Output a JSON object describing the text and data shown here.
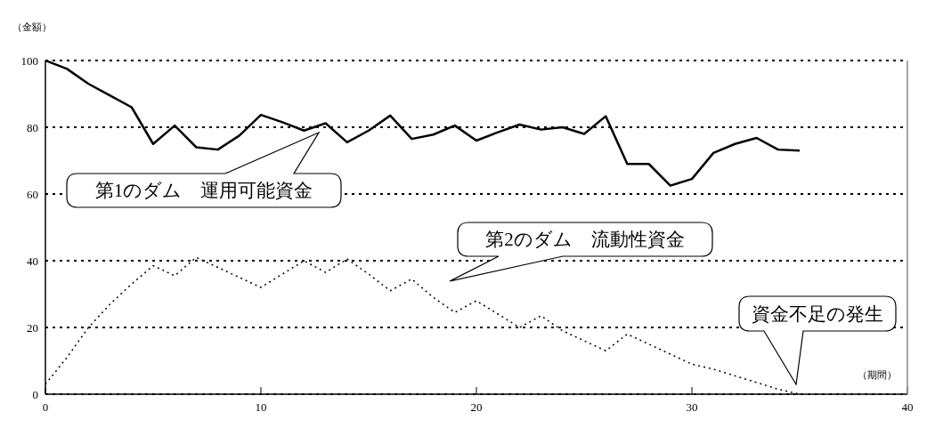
{
  "chart_data": {
    "type": "line",
    "ylabel": "（金額）",
    "xlabel": "（期間）",
    "xlim": [
      0,
      40
    ],
    "xticks": [
      0,
      10,
      20,
      30,
      40
    ],
    "ylim": [
      0,
      100
    ],
    "yticks": [
      0,
      20,
      40,
      60,
      80,
      100
    ],
    "grid": "y",
    "marker": "none",
    "x": [
      0,
      1,
      2,
      3,
      4,
      5,
      6,
      7,
      8,
      9,
      10,
      11,
      12,
      13,
      14,
      15,
      16,
      17,
      18,
      19,
      20,
      21,
      22,
      23,
      24,
      25,
      26,
      27,
      28,
      29,
      30,
      31,
      32,
      33,
      34,
      35
    ],
    "series": [
      {
        "color": "#000000",
        "line_style": "solid",
        "values": [
          100,
          97.5,
          93,
          89.5,
          86,
          75,
          80.5,
          74,
          73.3,
          77.5,
          83.7,
          81.5,
          79,
          81.2,
          75.5,
          79,
          83.5,
          76.5,
          77.8,
          80.5,
          76,
          78.5,
          80.8,
          79.3,
          80,
          78,
          83.3,
          69,
          69,
          62.5,
          64.5,
          72.3,
          75,
          76.8,
          73.3,
          73
        ]
      },
      {
        "color": "#000000",
        "line_style": "dotted",
        "values": [
          3,
          11,
          20,
          27,
          33,
          38.5,
          35.5,
          41,
          38,
          35,
          32,
          36,
          40,
          36.5,
          40.5,
          36,
          31,
          34.5,
          29,
          24.5,
          28,
          24,
          20,
          23.5,
          19,
          16,
          13,
          18,
          15,
          12,
          9,
          7.5,
          5.5,
          3.5,
          1.5,
          0
        ]
      }
    ],
    "annotations": [
      "第1のダム　運用可能資金",
      "第2のダム　流動性資金",
      "資金不足の発生"
    ]
  }
}
